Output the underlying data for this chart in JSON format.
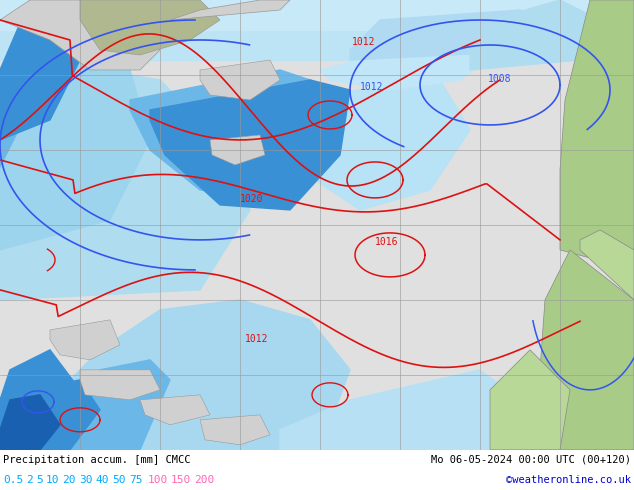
{
  "title_left": "Precipitation accum. [mm] CMCC",
  "title_right": "Mo 06-05-2024 00:00 UTC (00+120)",
  "credit": "©weatheronline.co.uk",
  "colorbar_cyan_vals": [
    "0.5",
    "2",
    "5",
    "10",
    "20",
    "30",
    "40",
    "50",
    "75"
  ],
  "colorbar_pink_vals": [
    "100",
    "150",
    "200"
  ],
  "cyan_color": "#00aaff",
  "pink_color": "#ff69b4",
  "title_fontsize": 7.5,
  "credit_color": "#0000cc",
  "figsize": [
    6.34,
    4.9
  ],
  "dpi": 100,
  "grid_color": "#999999",
  "contour_red": "#dd1111",
  "contour_blue": "#3355ee",
  "ocean_bg": "#d8eef8",
  "precip_light1": "#c5e8f5",
  "precip_light2": "#9dd4ed",
  "precip_mid": "#6bb8e8",
  "precip_deep": "#3a90d4",
  "precip_deeper": "#1a60b0",
  "land_gray": "#d0d0d0",
  "land_green": "#a8cc88",
  "land_green2": "#b8d898",
  "land_olive": "#b0b890"
}
